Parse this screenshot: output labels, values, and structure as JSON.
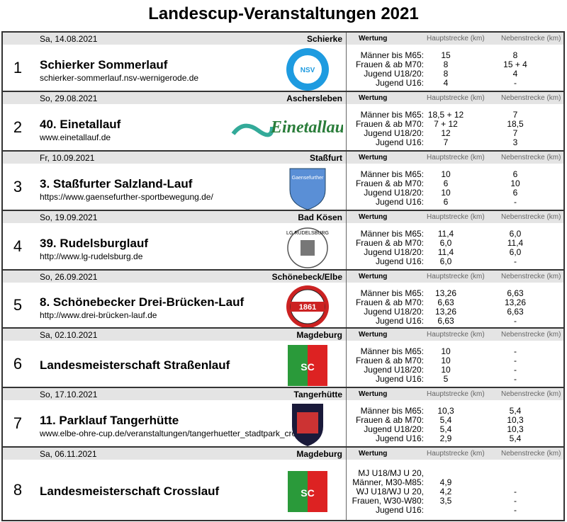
{
  "title": "Landescup-Veranstaltungen 2021",
  "headers": {
    "wertung": "Wertung",
    "haupt": "Hauptstrecke (km)",
    "neben": "Nebenstrecke (km)"
  },
  "events": [
    {
      "num": "1",
      "date": "Sa, 14.08.2021",
      "location": "Schierke",
      "name": "Schierker Sommerlauf",
      "url": "schierker-sommerlauf.nsv-wernigerode.de",
      "logo": "NSV",
      "rows": [
        [
          "Männer bis M65:",
          "15",
          "8"
        ],
        [
          "Frauen & ab M70:",
          "8",
          "15 + 4"
        ],
        [
          "Jugend U18/20:",
          "8",
          "4"
        ],
        [
          "Jugend U16:",
          "4",
          "-"
        ]
      ]
    },
    {
      "num": "2",
      "date": "So, 29.08.2021",
      "location": "Aschersleben",
      "name": "40. Einetallauf",
      "url": "www.einetallauf.de",
      "logo": "Einetallauf",
      "rows": [
        [
          "Männer bis M65:",
          "18,5 + 12",
          "7"
        ],
        [
          "Frauen & ab M70:",
          "7 + 12",
          "18,5"
        ],
        [
          "Jugend U18/20:",
          "12",
          "7"
        ],
        [
          "Jugend U16:",
          "7",
          "3"
        ]
      ]
    },
    {
      "num": "3",
      "date": "Fr, 10.09.2021",
      "location": "Staßfurt",
      "name": "3. Staßfurter Salzland-Lauf",
      "url": "https://www.gaensefurther-sportbewegung.de/",
      "logo": "Gaensefurther Sport Bewegung",
      "rows": [
        [
          "Männer bis M65:",
          "10",
          "6"
        ],
        [
          "Frauen & ab M70:",
          "6",
          "10"
        ],
        [
          "Jugend U18/20:",
          "10",
          "6"
        ],
        [
          "Jugend U16:",
          "6",
          "-"
        ]
      ]
    },
    {
      "num": "4",
      "date": "So, 19.09.2021",
      "location": "Bad Kösen",
      "name": "39. Rudelsburglauf",
      "url": "http://www.lg-rudelsburg.de",
      "logo": "LG RUDELSBURG",
      "rows": [
        [
          "Männer bis M65:",
          "11,4",
          "6,0"
        ],
        [
          "Frauen & ab M70:",
          "6,0",
          "11,4"
        ],
        [
          "Jugend U18/20:",
          "11,4",
          "6,0"
        ],
        [
          "Jugend U16:",
          "6,0",
          "-"
        ]
      ]
    },
    {
      "num": "5",
      "date": "So, 26.09.2021",
      "location": "Schönebeck/Elbe",
      "name": "8. Schönebecker Drei-Brücken-Lauf",
      "url": "http://www.drei-brücken-lauf.de",
      "logo": "UNION 1861",
      "rows": [
        [
          "Männer bis M65:",
          "13,26",
          "6,63"
        ],
        [
          "Frauen & ab M70:",
          "6,63",
          "13,26"
        ],
        [
          "Jugend U18/20:",
          "13,26",
          "6,63"
        ],
        [
          "Jugend U16:",
          "6,63",
          "-"
        ]
      ]
    },
    {
      "num": "6",
      "date": "Sa, 02.10.2021",
      "location": "Magdeburg",
      "name": "Landesmeisterschaft Straßenlauf",
      "url": "",
      "logo": "SC LEICHTATHLETIK",
      "rows": [
        [
          "Männer bis M65:",
          "10",
          "-"
        ],
        [
          "Frauen & ab M70:",
          "10",
          "-"
        ],
        [
          "Jugend U18/20:",
          "10",
          "-"
        ],
        [
          "Jugend U16:",
          "5",
          "-"
        ]
      ]
    },
    {
      "num": "7",
      "date": "So, 17.10.2021",
      "location": "Tangerhütte",
      "name": "11. Parklauf Tangerhütte",
      "url": "www.elbe-ohre-cup.de/veranstaltungen/tangerhuetter_stadtpark_cross",
      "logo": "SV GERMANIA TANGERHÜTTE",
      "rows": [
        [
          "Männer bis M65:",
          "10,3",
          "5,4"
        ],
        [
          "Frauen & ab M70:",
          "5,4",
          "10,3"
        ],
        [
          "Jugend U18/20:",
          "5,4",
          "10,3"
        ],
        [
          "Jugend U16:",
          "2,9",
          "5,4"
        ]
      ]
    },
    {
      "num": "8",
      "date": "Sa, 06.11.2021",
      "location": "Magdeburg",
      "name": "Landesmeisterschaft Crosslauf",
      "url": "",
      "logo": "SC LEICHTATHLETIK",
      "rows": [
        [
          "MJ U18/MJ U 20,",
          "",
          ""
        ],
        [
          "Männer, M30-M85:",
          "4,9",
          ""
        ],
        [
          "WJ U18/WJ U 20,",
          "4,2",
          "-"
        ],
        [
          "Frauen, W30-W80:",
          "3,5",
          "-"
        ],
        [
          "Jugend U16:",
          "",
          "-"
        ]
      ]
    }
  ]
}
